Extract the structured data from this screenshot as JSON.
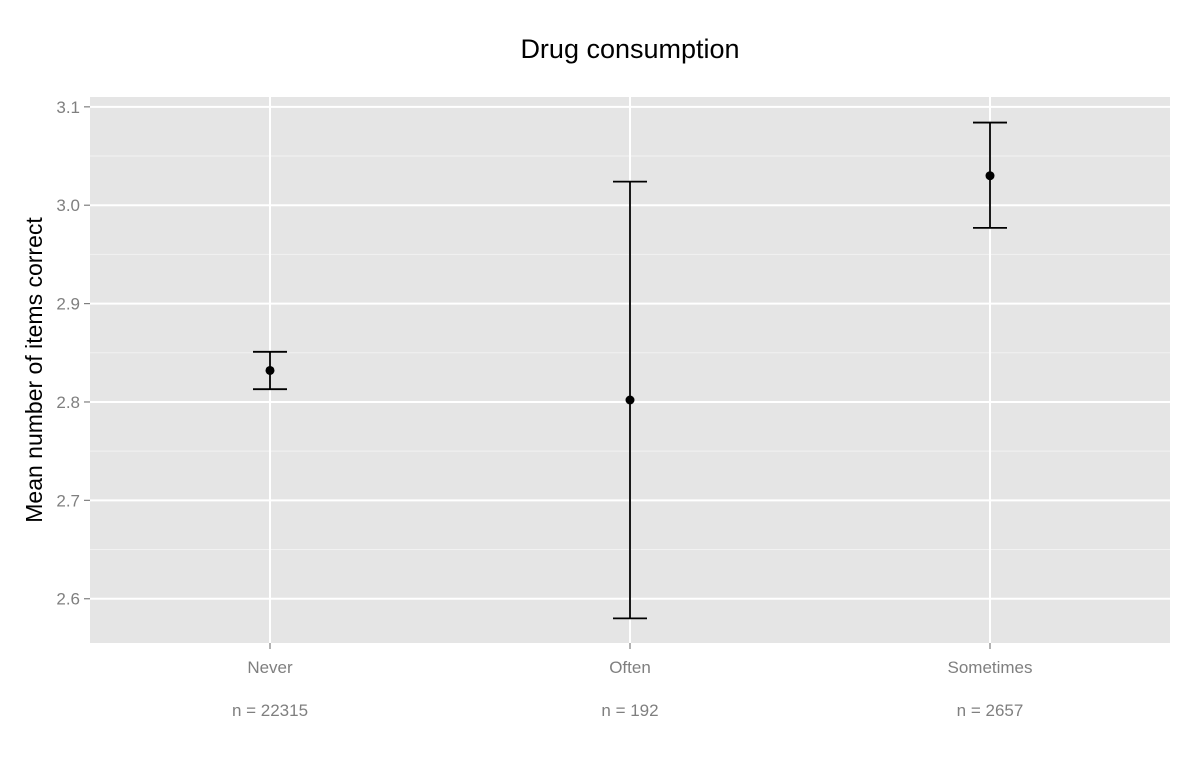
{
  "chart_data": {
    "type": "scatter",
    "title": "Drug consumption",
    "xlabel": "",
    "ylabel": "Mean number of items correct",
    "categories": [
      "Never",
      "Often",
      "Sometimes"
    ],
    "sample_sizes": [
      "n = 22315",
      "n = 192",
      "n = 2657"
    ],
    "means": [
      2.832,
      2.802,
      3.03
    ],
    "error_bars": [
      {
        "low": 2.813,
        "high": 2.851
      },
      {
        "low": 2.58,
        "high": 3.024
      },
      {
        "low": 2.977,
        "high": 3.084
      }
    ],
    "ylim": [
      2.555,
      3.11
    ],
    "yticks": [
      2.6,
      2.7,
      2.8,
      2.9,
      3.0,
      3.1
    ],
    "ytick_labels": [
      "2.6",
      "2.7",
      "2.8",
      "2.9",
      "3.0",
      "3.1"
    ],
    "grid": true,
    "legend": "none",
    "colors": {
      "panel_background": "#e5e5e5",
      "grid_major": "#ffffff",
      "grid_minor": "#f2f2f2",
      "marks": "#000000",
      "tick_text": "#7f7f7f"
    }
  }
}
